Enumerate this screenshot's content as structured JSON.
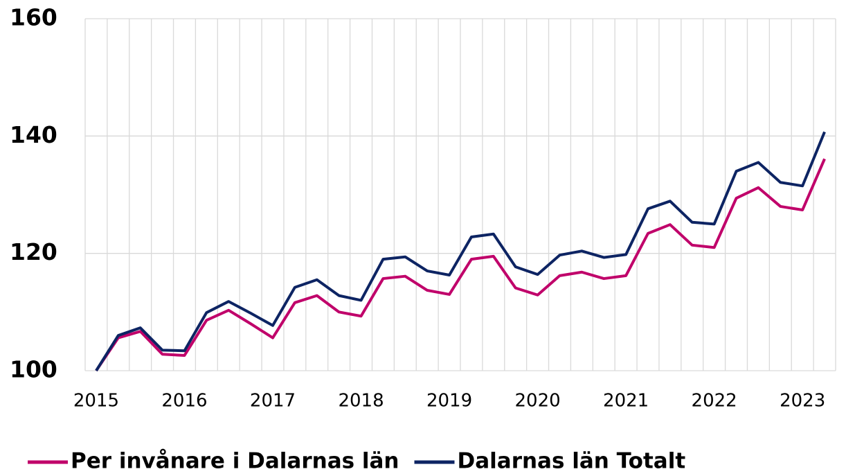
{
  "chart_data": {
    "type": "line",
    "categories": [
      "2015",
      null,
      null,
      null,
      "2016",
      null,
      null,
      null,
      "2017",
      null,
      null,
      null,
      "2018",
      null,
      null,
      null,
      "2019",
      null,
      null,
      null,
      "2020",
      null,
      null,
      null,
      "2021",
      null,
      null,
      null,
      "2022",
      null,
      null,
      null,
      "2023",
      null
    ],
    "series": [
      {
        "name": "Per invånare i Dalarnas län",
        "color": "#c0006a",
        "values": [
          100,
          105.6,
          106.7,
          102.8,
          102.6,
          108.6,
          110.3,
          108.0,
          105.6,
          111.6,
          112.8,
          110.0,
          109.3,
          115.7,
          116.1,
          113.7,
          113.0,
          119.0,
          119.5,
          114.1,
          112.9,
          116.2,
          116.8,
          115.7,
          116.2,
          123.4,
          124.9,
          121.4,
          121.0,
          129.4,
          131.2,
          128.0,
          127.4,
          136.1
        ]
      },
      {
        "name": "Dalarnas län Totalt",
        "color": "#0d2463",
        "values": [
          100,
          106.0,
          107.3,
          103.5,
          103.4,
          109.9,
          111.8,
          109.8,
          107.7,
          114.2,
          115.5,
          112.8,
          112.0,
          119.0,
          119.4,
          117.0,
          116.3,
          122.8,
          123.3,
          117.7,
          116.4,
          119.7,
          120.4,
          119.3,
          119.8,
          127.6,
          128.9,
          125.3,
          125.0,
          134.0,
          135.5,
          132.1,
          131.5,
          140.7
        ]
      }
    ],
    "ylim": [
      100,
      160
    ],
    "yticks": [
      100,
      120,
      140,
      160
    ],
    "grid": true,
    "legend": "bottom"
  }
}
